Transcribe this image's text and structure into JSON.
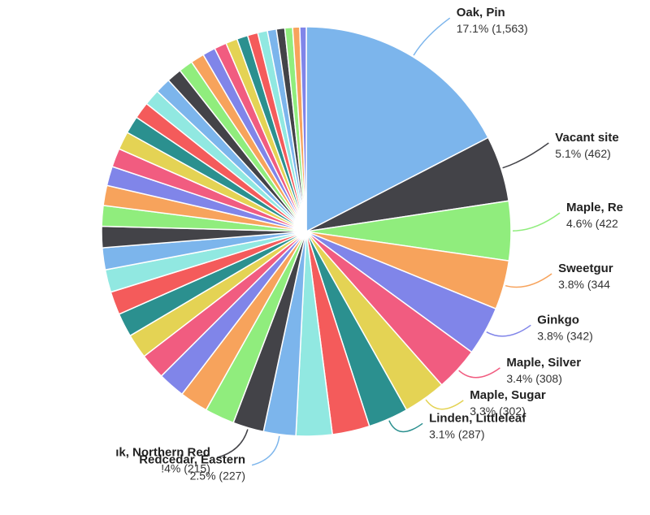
{
  "chart_data": {
    "type": "pie",
    "title": "",
    "labeled_slices": [
      {
        "name": "Oak, Pin",
        "label": "Oak, Pin",
        "percent_text": "17.1% (1,563)",
        "percent": 17.1,
        "count": 1563,
        "color": "#7cb5ec"
      },
      {
        "name": "Vacant site",
        "label": "Vacant site",
        "percent_text": "5.1% (462)",
        "percent": 5.1,
        "count": 462,
        "color": "#434348"
      },
      {
        "name": "Maple, Red",
        "label": "Maple, Re",
        "percent_text": "4.6% (422",
        "percent": 4.6,
        "count": 422,
        "color": "#90ed7d"
      },
      {
        "name": "Sweetgum",
        "label": "Sweetgur",
        "percent_text": "3.8% (344",
        "percent": 3.8,
        "count": 344,
        "color": "#f7a35c"
      },
      {
        "name": "Ginkgo",
        "label": "Ginkgo",
        "percent_text": "3.8% (342)",
        "percent": 3.8,
        "count": 342,
        "color": "#8085e9"
      },
      {
        "name": "Maple, Silver",
        "label": "Maple, Silver",
        "percent_text": "3.4% (308)",
        "percent": 3.4,
        "count": 308,
        "color": "#f15c80"
      },
      {
        "name": "Maple, Sugar",
        "label": "Maple, Sugar",
        "percent_text": "3.3% (302)",
        "percent": 3.3,
        "count": 302,
        "color": "#e4d354"
      },
      {
        "name": "Linden, Littleleaf",
        "label": "Linden, Littleleaf",
        "percent_text": "3.1% (287)",
        "percent": 3.1,
        "count": 287,
        "color": "#2b908f"
      },
      {
        "name": "",
        "label": "",
        "percent_text": "",
        "percent": 2.9,
        "count": null,
        "color": "#f45b5b"
      },
      {
        "name": "",
        "label": "",
        "percent_text": "",
        "percent": 2.8,
        "count": null,
        "color": "#91e8e1"
      },
      {
        "name": "Redcedar, Eastern",
        "label": "Redcedar, Eastern",
        "percent_text": "2.5% (227)",
        "percent": 2.5,
        "count": 227,
        "color": "#7cb5ec"
      },
      {
        "name": "Oak, Northern Red",
        "label": "ık, Northern Red",
        "percent_text": "!4% (215)",
        "percent": 2.4,
        "count": 215,
        "color": "#434348"
      }
    ],
    "remaining_slice_values": [
      2.3,
      2.2,
      2.1,
      2.0,
      1.9,
      1.85,
      1.8,
      1.75,
      1.7,
      1.65,
      1.6,
      1.55,
      1.5,
      1.45,
      1.4,
      1.35,
      1.3,
      1.25,
      1.2,
      1.15,
      1.1,
      1.05,
      1.0,
      0.95,
      0.9,
      0.85,
      0.8,
      0.75,
      0.7,
      0.65,
      0.6,
      0.55,
      0.5
    ],
    "palette": [
      "#7cb5ec",
      "#434348",
      "#90ed7d",
      "#f7a35c",
      "#8085e9",
      "#f15c80",
      "#e4d354",
      "#2b908f",
      "#f45b5b",
      "#91e8e1"
    ],
    "legend": "none"
  }
}
